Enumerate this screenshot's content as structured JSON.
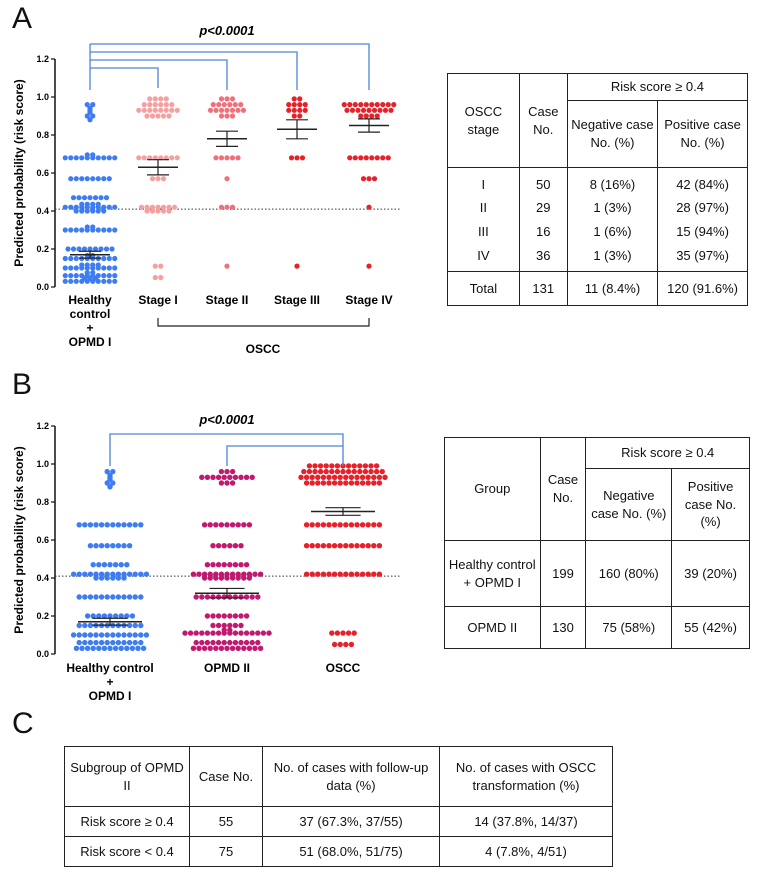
{
  "colors": {
    "blue": "#3d7cf2",
    "pink": "#f5a0a0",
    "salmon": "#f0707a",
    "red": "#e8202a",
    "magenta": "#c3186f",
    "bracket": "#4a86d8"
  },
  "panels": {
    "A": {
      "letter": "A",
      "pvalue": "p<0.0001",
      "xgroup_label": "OSCC",
      "table": {
        "col_stage": "OSCC stage",
        "col_case": "Case No.",
        "col_risk": "Risk score ≥ 0.4",
        "col_neg": "Negative case No. (%)",
        "col_pos": "Positive case No. (%)",
        "rows": [
          {
            "stage": "I",
            "case": "50",
            "neg": "8 (16%)",
            "pos": "42 (84%)"
          },
          {
            "stage": "II",
            "case": "29",
            "neg": "1 (3%)",
            "pos": "28 (97%)"
          },
          {
            "stage": "III",
            "case": "16",
            "neg": "1 (6%)",
            "pos": "15 (94%)"
          },
          {
            "stage": "IV",
            "case": "36",
            "neg": "1 (3%)",
            "pos": "35 (97%)"
          }
        ],
        "total": {
          "stage": "Total",
          "case": "131",
          "neg": "11 (8.4%)",
          "pos": "120 (91.6%)"
        }
      }
    },
    "B": {
      "letter": "B",
      "pvalue": "p<0.0001",
      "table": {
        "col_group": "Group",
        "col_case": "Case No.",
        "col_risk": "Risk score ≥ 0.4",
        "col_neg": "Negative case No. (%)",
        "col_pos": "Positive case No. (%)",
        "rows": [
          {
            "group": "Healthy control + OPMD I",
            "case": "199",
            "neg": "160 (80%)",
            "pos": "39 (20%)"
          },
          {
            "group": "OPMD II",
            "case": "130",
            "neg": "75 (58%)",
            "pos": "55 (42%)"
          }
        ]
      }
    },
    "C": {
      "letter": "C",
      "table": {
        "h1": "Subgroup of OPMD II",
        "h2": "Case No.",
        "h3": "No. of cases with follow-up data (%)",
        "h4": "No. of cases with OSCC transformation (%)",
        "rows": [
          {
            "sub": "Risk score ≥ 0.4",
            "case": "55",
            "follow": "37 (67.3%, 37/55)",
            "trans": "14 (37.8%, 14/37)"
          },
          {
            "sub": "Risk score < 0.4",
            "case": "75",
            "follow": "51 (68.0%, 51/75)",
            "trans": "4 (7.8%, 4/51)"
          }
        ]
      }
    }
  },
  "chart_data": [
    {
      "type": "scatter",
      "ylabel": "Predicted probability (risk score)",
      "ylim": [
        0,
        1.2
      ],
      "yticks": [
        "0.0",
        "0.2",
        "0.4",
        "0.6",
        "0.8",
        "1.0",
        "1.2"
      ],
      "threshold": 0.41,
      "categories": [
        "Healthy control + OPMD I",
        "Stage I",
        "Stage II",
        "Stage III",
        "Stage IV"
      ],
      "series": [
        {
          "color": "#3d7cf2",
          "mean": 0.17,
          "sem": 0.018,
          "values": [
            0.96,
            0.96,
            0.94,
            0.93,
            0.92,
            0.9,
            0.9,
            0.88,
            0.68,
            0.68,
            0.68,
            0.68,
            0.68,
            0.68,
            0.68,
            0.68,
            0.68,
            0.68,
            0.68,
            0.68,
            0.57,
            0.57,
            0.57,
            0.57,
            0.57,
            0.57,
            0.57,
            0.57,
            0.47,
            0.47,
            0.47,
            0.47,
            0.47,
            0.47,
            0.47,
            0.42,
            0.42,
            0.42,
            0.42,
            0.42,
            0.42,
            0.42,
            0.42,
            0.42,
            0.42,
            0.42,
            0.42,
            0.42,
            0.42,
            0.4,
            0.4,
            0.4,
            0.4,
            0.4,
            0.4,
            0.3,
            0.3,
            0.3,
            0.3,
            0.3,
            0.3,
            0.3,
            0.3,
            0.3,
            0.3,
            0.3,
            0.3,
            0.2,
            0.2,
            0.2,
            0.2,
            0.2,
            0.2,
            0.2,
            0.2,
            0.2,
            0.15,
            0.15,
            0.15,
            0.15,
            0.15,
            0.15,
            0.15,
            0.15,
            0.15,
            0.15,
            0.15,
            0.15,
            0.1,
            0.1,
            0.1,
            0.1,
            0.1,
            0.1,
            0.1,
            0.1,
            0.1,
            0.1,
            0.1,
            0.1,
            0.1,
            0.1,
            0.06,
            0.06,
            0.06,
            0.06,
            0.06,
            0.06,
            0.06,
            0.06,
            0.06,
            0.06,
            0.06,
            0.06,
            0.03,
            0.03,
            0.03,
            0.03,
            0.03,
            0.03,
            0.03,
            0.03,
            0.03,
            0.03,
            0.03,
            0.03,
            0.03
          ]
        },
        {
          "color": "#f5a0a0",
          "mean": 0.63,
          "sem": 0.04,
          "values": [
            0.99,
            0.99,
            0.99,
            0.99,
            0.96,
            0.96,
            0.96,
            0.96,
            0.96,
            0.96,
            0.93,
            0.93,
            0.93,
            0.93,
            0.93,
            0.93,
            0.93,
            0.93,
            0.9,
            0.9,
            0.9,
            0.9,
            0.9,
            0.68,
            0.68,
            0.68,
            0.68,
            0.68,
            0.68,
            0.68,
            0.68,
            0.57,
            0.57,
            0.57,
            0.42,
            0.42,
            0.42,
            0.42,
            0.42,
            0.42,
            0.42,
            0.4,
            0.4,
            0.4,
            0.4,
            0.4,
            0.11,
            0.11,
            0.05,
            0.05
          ]
        },
        {
          "color": "#f0707a",
          "mean": 0.78,
          "sem": 0.04,
          "values": [
            0.99,
            0.99,
            0.99,
            0.96,
            0.96,
            0.96,
            0.96,
            0.96,
            0.96,
            0.93,
            0.93,
            0.93,
            0.93,
            0.93,
            0.93,
            0.93,
            0.9,
            0.9,
            0.9,
            0.68,
            0.68,
            0.68,
            0.68,
            0.68,
            0.57,
            0.42,
            0.42,
            0.42,
            0.11
          ]
        },
        {
          "color": "#e8202a",
          "mean": 0.83,
          "sem": 0.05,
          "values": [
            0.99,
            0.99,
            0.96,
            0.96,
            0.96,
            0.96,
            0.93,
            0.93,
            0.93,
            0.93,
            0.9,
            0.9,
            0.68,
            0.68,
            0.68,
            0.11
          ]
        },
        {
          "color": "#e8202a",
          "mean": 0.85,
          "sem": 0.035,
          "values": [
            0.96,
            0.96,
            0.96,
            0.96,
            0.96,
            0.96,
            0.96,
            0.96,
            0.96,
            0.96,
            0.93,
            0.93,
            0.93,
            0.93,
            0.93,
            0.93,
            0.93,
            0.93,
            0.93,
            0.9,
            0.9,
            0.9,
            0.9,
            0.68,
            0.68,
            0.68,
            0.68,
            0.68,
            0.68,
            0.68,
            0.68,
            0.57,
            0.57,
            0.57,
            0.42,
            0.11
          ]
        }
      ]
    },
    {
      "type": "scatter",
      "ylabel": "Predicted probability (risk score)",
      "ylim": [
        0,
        1.2
      ],
      "yticks": [
        "0.0",
        "0.2",
        "0.4",
        "0.6",
        "0.8",
        "1.0",
        "1.2"
      ],
      "threshold": 0.41,
      "categories": [
        "Healthy control + OPMD I",
        "OPMD II",
        "OSCC"
      ],
      "series": [
        {
          "color": "#3d7cf2",
          "mean": 0.17,
          "sem": 0.018,
          "values": [
            0.96,
            0.96,
            0.94,
            0.93,
            0.92,
            0.9,
            0.9,
            0.88,
            0.68,
            0.68,
            0.68,
            0.68,
            0.68,
            0.68,
            0.68,
            0.68,
            0.68,
            0.68,
            0.68,
            0.68,
            0.57,
            0.57,
            0.57,
            0.57,
            0.57,
            0.57,
            0.57,
            0.57,
            0.47,
            0.47,
            0.47,
            0.47,
            0.47,
            0.47,
            0.47,
            0.42,
            0.42,
            0.42,
            0.42,
            0.42,
            0.42,
            0.42,
            0.42,
            0.42,
            0.42,
            0.42,
            0.42,
            0.42,
            0.42,
            0.4,
            0.4,
            0.4,
            0.4,
            0.4,
            0.4,
            0.3,
            0.3,
            0.3,
            0.3,
            0.3,
            0.3,
            0.3,
            0.3,
            0.3,
            0.3,
            0.3,
            0.3,
            0.2,
            0.2,
            0.2,
            0.2,
            0.2,
            0.2,
            0.2,
            0.2,
            0.2,
            0.15,
            0.15,
            0.15,
            0.15,
            0.15,
            0.15,
            0.15,
            0.15,
            0.15,
            0.15,
            0.15,
            0.15,
            0.1,
            0.1,
            0.1,
            0.1,
            0.1,
            0.1,
            0.1,
            0.1,
            0.1,
            0.1,
            0.1,
            0.1,
            0.1,
            0.1,
            0.06,
            0.06,
            0.06,
            0.06,
            0.06,
            0.06,
            0.06,
            0.06,
            0.06,
            0.06,
            0.06,
            0.06,
            0.03,
            0.03,
            0.03,
            0.03,
            0.03,
            0.03,
            0.03,
            0.03,
            0.03,
            0.03,
            0.03,
            0.03,
            0.03
          ]
        },
        {
          "color": "#c3186f",
          "mean": 0.32,
          "sem": 0.025,
          "values": [
            0.96,
            0.96,
            0.96,
            0.93,
            0.93,
            0.93,
            0.93,
            0.93,
            0.93,
            0.93,
            0.93,
            0.93,
            0.93,
            0.9,
            0.9,
            0.9,
            0.68,
            0.68,
            0.68,
            0.68,
            0.68,
            0.68,
            0.68,
            0.68,
            0.68,
            0.57,
            0.57,
            0.57,
            0.57,
            0.57,
            0.57,
            0.47,
            0.47,
            0.47,
            0.47,
            0.47,
            0.47,
            0.47,
            0.47,
            0.42,
            0.42,
            0.42,
            0.42,
            0.42,
            0.42,
            0.42,
            0.42,
            0.42,
            0.42,
            0.42,
            0.42,
            0.42,
            0.4,
            0.4,
            0.4,
            0.4,
            0.4,
            0.4,
            0.4,
            0.4,
            0.4,
            0.3,
            0.3,
            0.3,
            0.3,
            0.3,
            0.3,
            0.3,
            0.3,
            0.3,
            0.3,
            0.3,
            0.3,
            0.2,
            0.2,
            0.2,
            0.2,
            0.2,
            0.2,
            0.2,
            0.2,
            0.15,
            0.15,
            0.15,
            0.15,
            0.15,
            0.15,
            0.11,
            0.11,
            0.11,
            0.11,
            0.11,
            0.11,
            0.11,
            0.11,
            0.11,
            0.11,
            0.11,
            0.11,
            0.11,
            0.11,
            0.11,
            0.11,
            0.11,
            0.11,
            0.06,
            0.06,
            0.06,
            0.06,
            0.06,
            0.06,
            0.06,
            0.06,
            0.06,
            0.06,
            0.06,
            0.06,
            0.03,
            0.03,
            0.03,
            0.03,
            0.03,
            0.03,
            0.03,
            0.03,
            0.03,
            0.03,
            0.03,
            0.03,
            0.03
          ]
        },
        {
          "color": "#e8202a",
          "mean": 0.75,
          "sem": 0.02,
          "values": [
            0.99,
            0.99,
            0.99,
            0.99,
            0.99,
            0.99,
            0.99,
            0.99,
            0.99,
            0.99,
            0.99,
            0.99,
            0.99,
            0.96,
            0.96,
            0.96,
            0.96,
            0.96,
            0.96,
            0.96,
            0.96,
            0.96,
            0.96,
            0.96,
            0.96,
            0.96,
            0.96,
            0.96,
            0.93,
            0.93,
            0.93,
            0.93,
            0.93,
            0.93,
            0.93,
            0.93,
            0.93,
            0.93,
            0.93,
            0.93,
            0.93,
            0.93,
            0.93,
            0.93,
            0.9,
            0.9,
            0.9,
            0.9,
            0.9,
            0.9,
            0.9,
            0.9,
            0.9,
            0.9,
            0.9,
            0.9,
            0.9,
            0.9,
            0.68,
            0.68,
            0.68,
            0.68,
            0.68,
            0.68,
            0.68,
            0.68,
            0.68,
            0.68,
            0.68,
            0.68,
            0.68,
            0.68,
            0.57,
            0.57,
            0.57,
            0.57,
            0.57,
            0.57,
            0.57,
            0.57,
            0.57,
            0.57,
            0.57,
            0.57,
            0.57,
            0.57,
            0.42,
            0.42,
            0.42,
            0.42,
            0.42,
            0.42,
            0.42,
            0.42,
            0.42,
            0.42,
            0.42,
            0.42,
            0.42,
            0.42,
            0.11,
            0.11,
            0.11,
            0.11,
            0.11,
            0.05,
            0.05,
            0.05,
            0.05
          ]
        }
      ]
    }
  ]
}
